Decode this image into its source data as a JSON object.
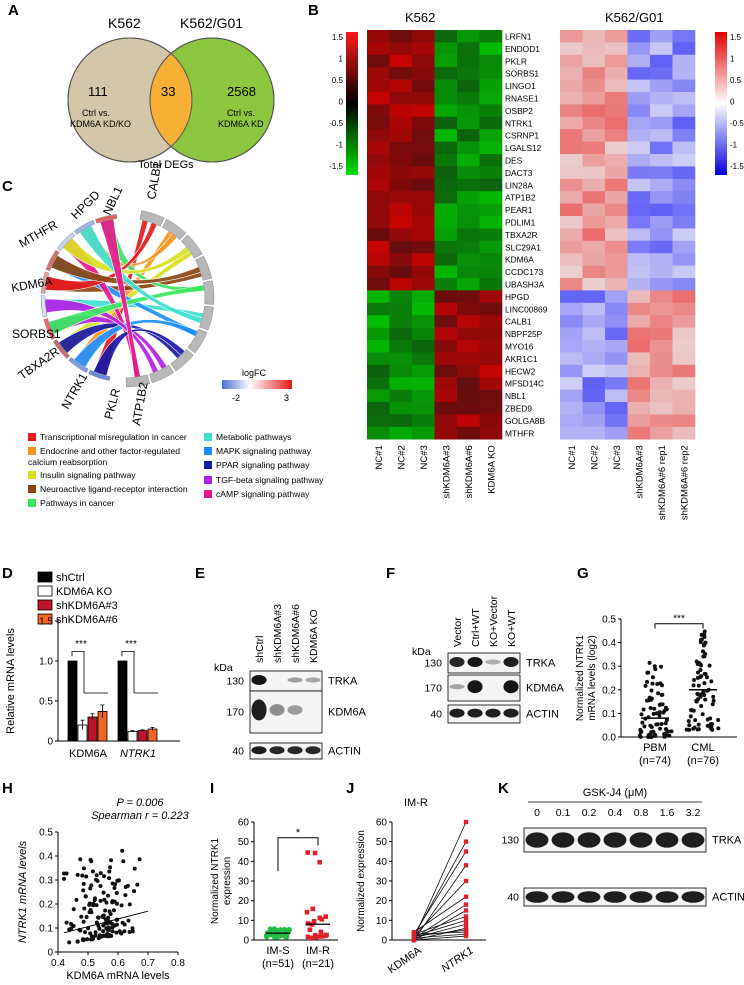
{
  "panels": {
    "A": "A",
    "B": "B",
    "C": "C",
    "D": "D",
    "E": "E",
    "F": "F",
    "G": "G",
    "H": "H",
    "I": "I",
    "J": "J",
    "K": "K"
  },
  "venn": {
    "left_title": "K562",
    "right_title": "K562/G01",
    "left_count": "111",
    "overlap_count": "33",
    "right_count": "2568",
    "left_desc_1": "Ctrl vs.",
    "left_desc_2": "KDM6A KD/KO",
    "right_desc_1": "Ctrl vs.",
    "right_desc_2": "KDM6A KD",
    "footer": "Total DEGs",
    "colors": {
      "left": "#d4c6a8",
      "right": "#8dc63f",
      "overlap": "#f7b035"
    }
  },
  "heatmap": {
    "left_title": "K562",
    "right_title": "K562/G01",
    "genes": [
      "LRFN1",
      "ENDOD1",
      "PKLR",
      "SORBS1",
      "LINGO1",
      "RNASE1",
      "OSBP2",
      "NTRK1",
      "CSRNP1",
      "LGALS12",
      "DES",
      "DACT3",
      "LIN28A",
      "ATP1B2",
      "PEAR1",
      "PDLIM1",
      "TBXA2R",
      "SLC29A1",
      "KDM6A",
      "CCDC173",
      "UBASH3A",
      "HPGD",
      "LINC00869",
      "CALB1",
      "NBPF25P",
      "MYO16",
      "AKR1C1",
      "HECW2",
      "MFSD14C",
      "NBL1",
      "ZBED9",
      "GOLGA8B",
      "MTHFR"
    ],
    "left_columns": [
      "NC#1",
      "NC#2",
      "NC#3",
      "shKDM6A#3",
      "shKDM6A#6",
      "KDM6A KO"
    ],
    "right_columns": [
      "NC#1",
      "NC#2",
      "NC#3",
      "shKDM6A#3",
      "shKDM6A#6 rep1",
      "shKDM6A#6 rep2"
    ],
    "left_scale": [
      "1.5",
      "1",
      "0.5",
      "0",
      "-0.5",
      "-1",
      "-1.5"
    ],
    "right_scale": [
      "1.5",
      "1",
      "0.5",
      "0",
      "-0.5",
      "-1",
      "-1.5"
    ],
    "up_genes": 21
  },
  "chord": {
    "genes": [
      "CALB1",
      "NBL1",
      "HPGD",
      "MTHFR",
      "KDM6A",
      "SORBS1",
      "TBXA2R",
      "NTRK1",
      "PKLR",
      "ATP1B2"
    ],
    "legend_title": "logFC",
    "legend_min": "-2",
    "legend_max": "3",
    "pathways": [
      {
        "label": "Transcriptional misregulation in cancer",
        "color": "#e41a1c"
      },
      {
        "label": "Endocrine and other factor-regulated calcium reabsorption",
        "color": "#f7941d"
      },
      {
        "label": "Insulin signaling pathway",
        "color": "#d9e021"
      },
      {
        "label": "Neuroactive ligand-receptor interaction",
        "color": "#8b4513"
      },
      {
        "label": "Pathways in cancer",
        "color": "#39e75f"
      },
      {
        "label": "Metabolic pathways",
        "color": "#40e0d0"
      },
      {
        "label": "MAPK signaling pathway",
        "color": "#1e90ff"
      },
      {
        "label": "PPAR signaling pathway",
        "color": "#1a1aa6"
      },
      {
        "label": "TGF-beta signaling pathway",
        "color": "#b41ee6"
      },
      {
        "label": "cAMP signaling pathway",
        "color": "#e6198c"
      }
    ]
  },
  "chart_data": [
    {
      "panel": "D",
      "type": "bar",
      "categories": [
        "KDM6A",
        "NTRK1"
      ],
      "series": [
        {
          "name": "shCtrl",
          "values": [
            1.0,
            1.0
          ],
          "color": "#000000"
        },
        {
          "name": "KDM6A KO",
          "values": [
            0.2,
            0.12
          ],
          "color": "#ffffff"
        },
        {
          "name": "shKDM6A#3",
          "values": [
            0.3,
            0.13
          ],
          "color": "#c0142c"
        },
        {
          "name": "shKDM6A#6",
          "values": [
            0.37,
            0.15
          ],
          "color": "#f26522"
        }
      ],
      "errors": [
        [
          0,
          0
        ],
        [
          0.06,
          0.01
        ],
        [
          0.04,
          0.01
        ],
        [
          0.08,
          0.02
        ]
      ],
      "ylabel": "Relative mRNA levels",
      "ylim": [
        0,
        1.5
      ],
      "yticks": [
        "0",
        "0.5",
        "1.0",
        "1.5"
      ],
      "significance": [
        "***",
        "***"
      ]
    },
    {
      "panel": "G",
      "type": "scatter",
      "categories": [
        "PBM",
        "CML"
      ],
      "group_labels": [
        "(n=74)",
        "(n=76)"
      ],
      "ylabel_1": "Normalized NTRK1",
      "ylabel_2": "mRNA levels (log2)",
      "ylim": [
        0,
        0.5
      ],
      "yticks": [
        "0.0",
        "0.1",
        "0.2",
        "0.3",
        "0.4",
        "0.5"
      ],
      "significance": "***",
      "n": [
        74,
        76
      ],
      "median": [
        0.08,
        0.2
      ]
    },
    {
      "panel": "H",
      "type": "scatter",
      "xlabel": "KDM6A mRNA levels",
      "ylabel": "NTRK1 mRNA levels",
      "xlim": [
        0.4,
        0.8
      ],
      "ylim": [
        0,
        0.5
      ],
      "xticks": [
        "0.4",
        "0.5",
        "0.6",
        "0.7",
        "0.8"
      ],
      "yticks": [
        "0",
        "0.1",
        "0.2",
        "0.3",
        "0.4",
        "0.5"
      ],
      "annot_p": "P = 0.006",
      "annot_r": "Spearman r = 0.223",
      "n": 150
    },
    {
      "panel": "I",
      "type": "scatter",
      "categories": [
        "IM-S",
        "IM-R"
      ],
      "group_labels": [
        "(n=51)",
        "(n=21)"
      ],
      "ylabel_1": "Normalized NTRK1",
      "ylabel_2": "expression",
      "ylim": [
        0,
        60
      ],
      "yticks": [
        "0",
        "10",
        "20",
        "30",
        "40",
        "50",
        "60"
      ],
      "significance": "*",
      "n": [
        51,
        21
      ]
    },
    {
      "panel": "J",
      "type": "line",
      "title": "IM-R",
      "categories": [
        "KDM6A",
        "NTRK1"
      ],
      "ylabel": "Normalized expression",
      "ylim": [
        0,
        60
      ],
      "yticks": [
        "0",
        "10",
        "20",
        "30",
        "40",
        "50",
        "60"
      ],
      "pairs": [
        [
          1,
          60
        ],
        [
          2,
          50
        ],
        [
          3,
          45
        ],
        [
          0,
          38
        ],
        [
          2,
          30
        ],
        [
          4,
          22
        ],
        [
          1,
          18
        ],
        [
          0,
          15
        ],
        [
          3,
          12
        ],
        [
          2,
          10
        ],
        [
          1,
          8
        ],
        [
          0,
          6
        ],
        [
          2,
          5
        ],
        [
          1,
          3
        ],
        [
          0,
          2
        ],
        [
          3,
          4
        ]
      ]
    }
  ],
  "blotE": {
    "kda": "kDa",
    "lanes": [
      "shCtrl",
      "shKDM6A#3",
      "shKDM6A#6",
      "KDM6A KO"
    ],
    "markers": [
      "130",
      "170",
      "40"
    ],
    "proteins": [
      "TRKA",
      "KDM6A",
      "ACTIN"
    ]
  },
  "blotF": {
    "kda": "kDa",
    "lanes": [
      "Vector",
      "Ctrl+WT",
      "KO+Vector",
      "KO+WT"
    ],
    "markers": [
      "130",
      "170",
      "40"
    ],
    "proteins": [
      "TRKA",
      "KDM6A",
      "ACTIN"
    ]
  },
  "blotK": {
    "title": "GSK-J4 (μM)",
    "doses": [
      "0",
      "0.1",
      "0.2",
      "0.4",
      "0.8",
      "1.6",
      "3.2"
    ],
    "markers": [
      "130",
      "40"
    ],
    "proteins": [
      "TRKA",
      "ACTIN"
    ]
  }
}
